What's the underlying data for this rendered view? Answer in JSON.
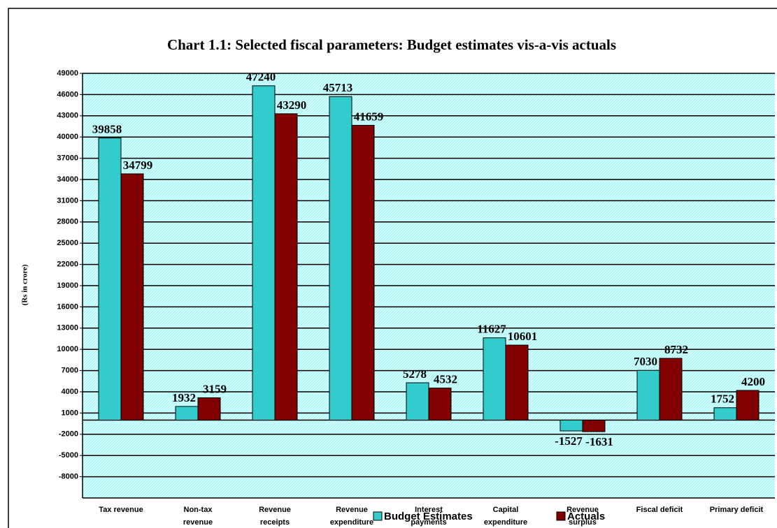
{
  "chart_data": {
    "type": "bar",
    "title": "Chart 1.1: Selected fiscal parameters: Budget estimates vis-a-vis actuals",
    "y_label": "(Rs in crore)",
    "categories": [
      "Tax revenue",
      "Non-tax revenue",
      "Revenue receipts",
      "Revenue expenditure",
      "Interest payments",
      "Capital expenditure",
      "Revenue surplus",
      "Fiscal deficit",
      "Primary deficit"
    ],
    "series": [
      {
        "name": "Budget Estimates",
        "color": "#33cccc",
        "values": [
          39858,
          1932,
          47240,
          45713,
          5278,
          11627,
          -1527,
          7030,
          1752
        ]
      },
      {
        "name": "Actuals",
        "color": "#800000",
        "values": [
          34799,
          3159,
          43290,
          41659,
          4532,
          10601,
          -1631,
          8732,
          4200
        ]
      }
    ],
    "ylim": [
      -11000,
      49000
    ],
    "yticks": [
      49000,
      46000,
      43000,
      40000,
      37000,
      34000,
      31000,
      28000,
      25000,
      22000,
      19000,
      16000,
      13000,
      10000,
      7000,
      4000,
      1000,
      -2000,
      -5000,
      -8000
    ],
    "grid": true
  }
}
